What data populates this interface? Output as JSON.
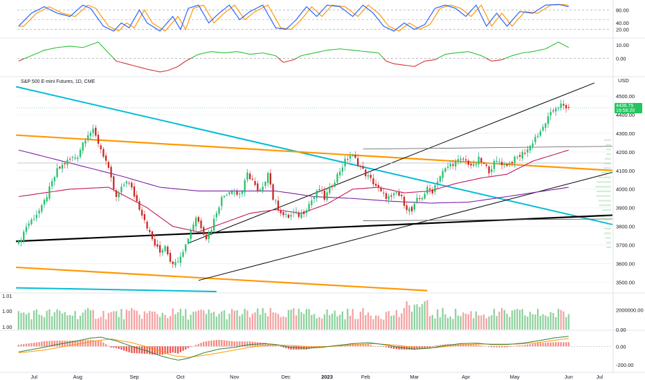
{
  "chart_data": {
    "type": "candlestick",
    "title": "S&P 500 E-mini Futures, 1D, CME",
    "currency": "USD",
    "price": {
      "last": "4436.75",
      "countdown": "19:58:20",
      "ylim": [
        3450,
        4600
      ],
      "ticks": [
        "4500.00",
        "4400.00",
        "4300.00",
        "4200.00",
        "4100.00",
        "4000.00",
        "3900.00",
        "3800.00",
        "3700.00",
        "3600.00",
        "3500.00"
      ],
      "tick_values": [
        4500,
        4400,
        4300,
        4200,
        4100,
        4000,
        3900,
        3800,
        3700,
        3600,
        3500
      ],
      "close_path": [
        [
          0,
          3710
        ],
        [
          3,
          3800
        ],
        [
          6,
          3850
        ],
        [
          9,
          3900
        ],
        [
          12,
          4000
        ],
        [
          15,
          4100
        ],
        [
          18,
          4140
        ],
        [
          20,
          4160
        ],
        [
          23,
          4180
        ],
        [
          25,
          4250
        ],
        [
          27,
          4300
        ],
        [
          29,
          4310
        ],
        [
          31,
          4250
        ],
        [
          34,
          4150
        ],
        [
          36,
          4050
        ],
        [
          38,
          3950
        ],
        [
          40,
          4000
        ],
        [
          42,
          4050
        ],
        [
          44,
          4000
        ],
        [
          47,
          3900
        ],
        [
          49,
          3840
        ],
        [
          51,
          3760
        ],
        [
          53,
          3700
        ],
        [
          55,
          3660
        ],
        [
          57,
          3700
        ],
        [
          59,
          3620
        ],
        [
          61,
          3600
        ],
        [
          63,
          3650
        ],
        [
          65,
          3700
        ],
        [
          67,
          3780
        ],
        [
          69,
          3850
        ],
        [
          71,
          3800
        ],
        [
          73,
          3740
        ],
        [
          75,
          3790
        ],
        [
          77,
          3880
        ],
        [
          79,
          3950
        ],
        [
          81,
          3980
        ],
        [
          83,
          4000
        ],
        [
          85,
          3970
        ],
        [
          87,
          3990
        ],
        [
          89,
          4080
        ],
        [
          91,
          4050
        ],
        [
          93,
          3980
        ],
        [
          95,
          4000
        ],
        [
          97,
          4100
        ],
        [
          99,
          3950
        ],
        [
          101,
          3900
        ],
        [
          103,
          3860
        ],
        [
          105,
          3850
        ],
        [
          107,
          3870
        ],
        [
          109,
          3860
        ],
        [
          111,
          3880
        ],
        [
          113,
          3920
        ],
        [
          115,
          3960
        ],
        [
          117,
          4000
        ],
        [
          119,
          3950
        ],
        [
          121,
          4000
        ],
        [
          123,
          4050
        ],
        [
          125,
          4100
        ],
        [
          127,
          4150
        ],
        [
          129,
          4180
        ],
        [
          131,
          4160
        ],
        [
          133,
          4120
        ],
        [
          135,
          4080
        ],
        [
          137,
          4050
        ],
        [
          139,
          4020
        ],
        [
          141,
          3980
        ],
        [
          143,
          3960
        ],
        [
          145,
          3950
        ],
        [
          147,
          3980
        ],
        [
          149,
          3950
        ],
        [
          151,
          3900
        ],
        [
          153,
          3880
        ],
        [
          155,
          3940
        ],
        [
          157,
          3960
        ],
        [
          159,
          4000
        ],
        [
          161,
          3990
        ],
        [
          163,
          4050
        ],
        [
          165,
          4090
        ],
        [
          167,
          4120
        ],
        [
          169,
          4140
        ],
        [
          171,
          4150
        ],
        [
          173,
          4160
        ],
        [
          175,
          4140
        ],
        [
          177,
          4120
        ],
        [
          179,
          4160
        ],
        [
          181,
          4130
        ],
        [
          183,
          4100
        ],
        [
          185,
          4140
        ],
        [
          187,
          4150
        ],
        [
          189,
          4130
        ],
        [
          191,
          4140
        ],
        [
          193,
          4160
        ],
        [
          195,
          4180
        ],
        [
          197,
          4200
        ],
        [
          199,
          4230
        ],
        [
          201,
          4280
        ],
        [
          203,
          4300
        ],
        [
          205,
          4360
        ],
        [
          207,
          4400
        ],
        [
          209,
          4440
        ],
        [
          211,
          4450
        ],
        [
          213,
          4430
        ],
        [
          214,
          4436.75
        ]
      ],
      "moving_averages": [
        {
          "color": "#c2185b",
          "values": [
            [
              0,
              3960
            ],
            [
              20,
              4000
            ],
            [
              35,
              4010
            ],
            [
              50,
              3900
            ],
            [
              60,
              3800
            ],
            [
              70,
              3770
            ],
            [
              80,
              3820
            ],
            [
              90,
              3870
            ],
            [
              100,
              3890
            ],
            [
              110,
              3870
            ],
            [
              120,
              3920
            ],
            [
              130,
              4000
            ],
            [
              140,
              4010
            ],
            [
              150,
              3980
            ],
            [
              160,
              3990
            ],
            [
              170,
              4030
            ],
            [
              180,
              4060
            ],
            [
              190,
              4080
            ],
            [
              200,
              4150
            ],
            [
              214,
              4210
            ]
          ]
        },
        {
          "color": "#7b1fa2",
          "values": [
            [
              0,
              4210
            ],
            [
              20,
              4140
            ],
            [
              40,
              4070
            ],
            [
              55,
              4010
            ],
            [
              70,
              3990
            ],
            [
              85,
              3990
            ],
            [
              100,
              3990
            ],
            [
              115,
              3960
            ],
            [
              130,
              3950
            ],
            [
              145,
              3935
            ],
            [
              160,
              3925
            ],
            [
              175,
              3930
            ],
            [
              190,
              3960
            ],
            [
              214,
              4010
            ]
          ]
        }
      ]
    },
    "x_axis": {
      "ticks": [
        {
          "label": "Jul",
          "i": 6
        },
        {
          "label": "Aug",
          "i": 23
        },
        {
          "label": "Sep",
          "i": 45
        },
        {
          "label": "Oct",
          "i": 63
        },
        {
          "label": "Nov",
          "i": 84
        },
        {
          "label": "Dec",
          "i": 104
        },
        {
          "label": "2023",
          "i": 120
        },
        {
          "label": "Feb",
          "i": 135
        },
        {
          "label": "Mar",
          "i": 154
        },
        {
          "label": "Apr",
          "i": 174
        },
        {
          "label": "May",
          "i": 193
        },
        {
          "label": "Jun",
          "i": 214
        },
        {
          "label": "Jul",
          "i": 226
        }
      ],
      "n_bars": 231
    },
    "stochastic": {
      "ticks": [
        "80.00",
        "40.00",
        "20.00"
      ],
      "tick_values": [
        80,
        40,
        20
      ],
      "levels": [
        80,
        50,
        20
      ],
      "values": [
        [
          0,
          30
        ],
        [
          5,
          70
        ],
        [
          10,
          90
        ],
        [
          15,
          70
        ],
        [
          20,
          60
        ],
        [
          25,
          95
        ],
        [
          28,
          85
        ],
        [
          33,
          30
        ],
        [
          37,
          15
        ],
        [
          40,
          40
        ],
        [
          43,
          25
        ],
        [
          47,
          80
        ],
        [
          50,
          40
        ],
        [
          55,
          15
        ],
        [
          60,
          60
        ],
        [
          63,
          20
        ],
        [
          66,
          85
        ],
        [
          70,
          95
        ],
        [
          74,
          40
        ],
        [
          78,
          70
        ],
        [
          82,
          95
        ],
        [
          86,
          50
        ],
        [
          90,
          75
        ],
        [
          95,
          95
        ],
        [
          100,
          25
        ],
        [
          104,
          20
        ],
        [
          108,
          50
        ],
        [
          112,
          90
        ],
        [
          116,
          60
        ],
        [
          120,
          95
        ],
        [
          125,
          90
        ],
        [
          130,
          60
        ],
        [
          134,
          95
        ],
        [
          138,
          70
        ],
        [
          142,
          30
        ],
        [
          146,
          15
        ],
        [
          150,
          40
        ],
        [
          154,
          20
        ],
        [
          158,
          35
        ],
        [
          162,
          85
        ],
        [
          166,
          95
        ],
        [
          170,
          85
        ],
        [
          174,
          60
        ],
        [
          178,
          95
        ],
        [
          182,
          30
        ],
        [
          186,
          70
        ],
        [
          190,
          30
        ],
        [
          195,
          75
        ],
        [
          200,
          70
        ],
        [
          205,
          95
        ],
        [
          210,
          97
        ],
        [
          214,
          90
        ]
      ]
    },
    "oscillator": {
      "ticks": [
        "10.00",
        "0.00"
      ],
      "tick_values": [
        10,
        0
      ],
      "ylim": [
        -12,
        14
      ],
      "values": [
        [
          0,
          -2
        ],
        [
          5,
          2
        ],
        [
          10,
          6
        ],
        [
          15,
          8
        ],
        [
          20,
          9
        ],
        [
          25,
          8
        ],
        [
          28,
          10
        ],
        [
          31,
          12
        ],
        [
          34,
          6
        ],
        [
          38,
          -2
        ],
        [
          42,
          -4
        ],
        [
          46,
          -6
        ],
        [
          50,
          -8
        ],
        [
          55,
          -10
        ],
        [
          58,
          -9
        ],
        [
          62,
          -6
        ],
        [
          65,
          -2
        ],
        [
          70,
          3
        ],
        [
          75,
          5
        ],
        [
          80,
          4
        ],
        [
          85,
          5
        ],
        [
          90,
          3
        ],
        [
          95,
          4
        ],
        [
          100,
          2
        ],
        [
          103,
          -3
        ],
        [
          107,
          -1
        ],
        [
          110,
          2
        ],
        [
          115,
          4
        ],
        [
          120,
          6
        ],
        [
          125,
          7
        ],
        [
          130,
          6
        ],
        [
          135,
          5
        ],
        [
          140,
          4
        ],
        [
          143,
          -2
        ],
        [
          146,
          -4
        ],
        [
          150,
          -5
        ],
        [
          154,
          -6
        ],
        [
          158,
          -2
        ],
        [
          162,
          -1
        ],
        [
          166,
          3
        ],
        [
          170,
          4
        ],
        [
          175,
          5
        ],
        [
          180,
          2
        ],
        [
          184,
          -2
        ],
        [
          188,
          -1
        ],
        [
          192,
          2
        ],
        [
          196,
          4
        ],
        [
          200,
          5
        ],
        [
          205,
          7
        ],
        [
          210,
          12
        ],
        [
          214,
          8
        ]
      ]
    },
    "volume": {
      "ticks_left": [
        "1.01",
        "1.00",
        "1.00"
      ],
      "ticks_right": [
        "2000000.00",
        "0.00"
      ],
      "tick_values": [
        2000000,
        0
      ],
      "ylim": [
        0,
        3500000
      ]
    },
    "macd": {
      "ticks": [
        "0.00",
        "-200.00"
      ],
      "tick_values": [
        0,
        -200
      ],
      "ylim": [
        -260,
        160
      ],
      "macd_values": [
        [
          0,
          -60
        ],
        [
          8,
          -20
        ],
        [
          15,
          20
        ],
        [
          22,
          55
        ],
        [
          28,
          90
        ],
        [
          32,
          100
        ],
        [
          38,
          60
        ],
        [
          44,
          0
        ],
        [
          50,
          -50
        ],
        [
          56,
          -110
        ],
        [
          62,
          -150
        ],
        [
          66,
          -130
        ],
        [
          72,
          -70
        ],
        [
          78,
          -30
        ],
        [
          84,
          -10
        ],
        [
          90,
          20
        ],
        [
          96,
          30
        ],
        [
          100,
          20
        ],
        [
          106,
          -10
        ],
        [
          112,
          -20
        ],
        [
          118,
          -10
        ],
        [
          124,
          10
        ],
        [
          130,
          30
        ],
        [
          136,
          40
        ],
        [
          142,
          20
        ],
        [
          148,
          -10
        ],
        [
          154,
          -30
        ],
        [
          160,
          -20
        ],
        [
          166,
          10
        ],
        [
          172,
          30
        ],
        [
          178,
          35
        ],
        [
          184,
          20
        ],
        [
          190,
          20
        ],
        [
          196,
          35
        ],
        [
          202,
          60
        ],
        [
          208,
          90
        ],
        [
          214,
          110
        ]
      ],
      "signal_values": [
        [
          0,
          -70
        ],
        [
          10,
          -40
        ],
        [
          20,
          10
        ],
        [
          30,
          60
        ],
        [
          36,
          80
        ],
        [
          44,
          40
        ],
        [
          52,
          -20
        ],
        [
          60,
          -100
        ],
        [
          66,
          -120
        ],
        [
          74,
          -90
        ],
        [
          82,
          -50
        ],
        [
          90,
          -10
        ],
        [
          98,
          15
        ],
        [
          106,
          10
        ],
        [
          114,
          -5
        ],
        [
          122,
          0
        ],
        [
          130,
          15
        ],
        [
          138,
          30
        ],
        [
          146,
          15
        ],
        [
          154,
          -10
        ],
        [
          162,
          -15
        ],
        [
          170,
          10
        ],
        [
          178,
          25
        ],
        [
          186,
          25
        ],
        [
          194,
          25
        ],
        [
          202,
          40
        ],
        [
          208,
          65
        ],
        [
          214,
          85
        ]
      ]
    }
  }
}
